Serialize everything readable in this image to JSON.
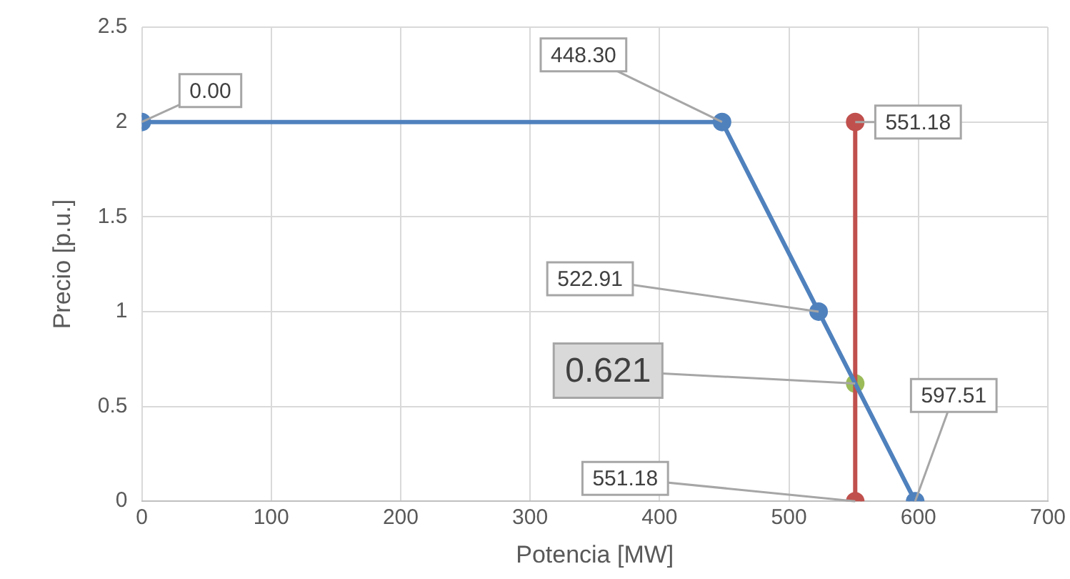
{
  "chart_data": {
    "type": "line",
    "xlabel": "Potencia [MW]",
    "ylabel": "Precio [p.u.]",
    "xlim": [
      0,
      700
    ],
    "xticks": [
      0,
      100,
      200,
      300,
      400,
      500,
      600,
      700
    ],
    "ylim": [
      0,
      2.5
    ],
    "yticks": [
      0,
      0.5,
      1,
      1.5,
      2,
      2.5
    ],
    "grid": true,
    "legend": false,
    "marker": "circle",
    "line_style": "solid",
    "series": [
      {
        "type": "line",
        "color": "#4f81bd",
        "x": [
          0,
          448.3,
          522.91,
          597.51
        ],
        "values": [
          2,
          2,
          1,
          0
        ]
      },
      {
        "type": "line",
        "color": "#c0504d",
        "x": [
          551.18,
          551.18
        ],
        "values": [
          0,
          2
        ]
      },
      {
        "type": "scatter",
        "color": "#9bbb59",
        "x": [
          551.18
        ],
        "values": [
          0.621
        ]
      }
    ],
    "annotations": [
      {
        "text": "0.00",
        "x": 0,
        "y": 2
      },
      {
        "text": "448.30",
        "x": 448.3,
        "y": 2
      },
      {
        "text": "551.18",
        "x": 551.18,
        "y": 2
      },
      {
        "text": "522.91",
        "x": 522.91,
        "y": 1
      },
      {
        "text": "0.621",
        "x": 551.18,
        "y": 0.621
      },
      {
        "text": "597.51",
        "x": 597.51,
        "y": 0
      },
      {
        "text": "551.18",
        "x": 551.18,
        "y": 0
      }
    ]
  }
}
